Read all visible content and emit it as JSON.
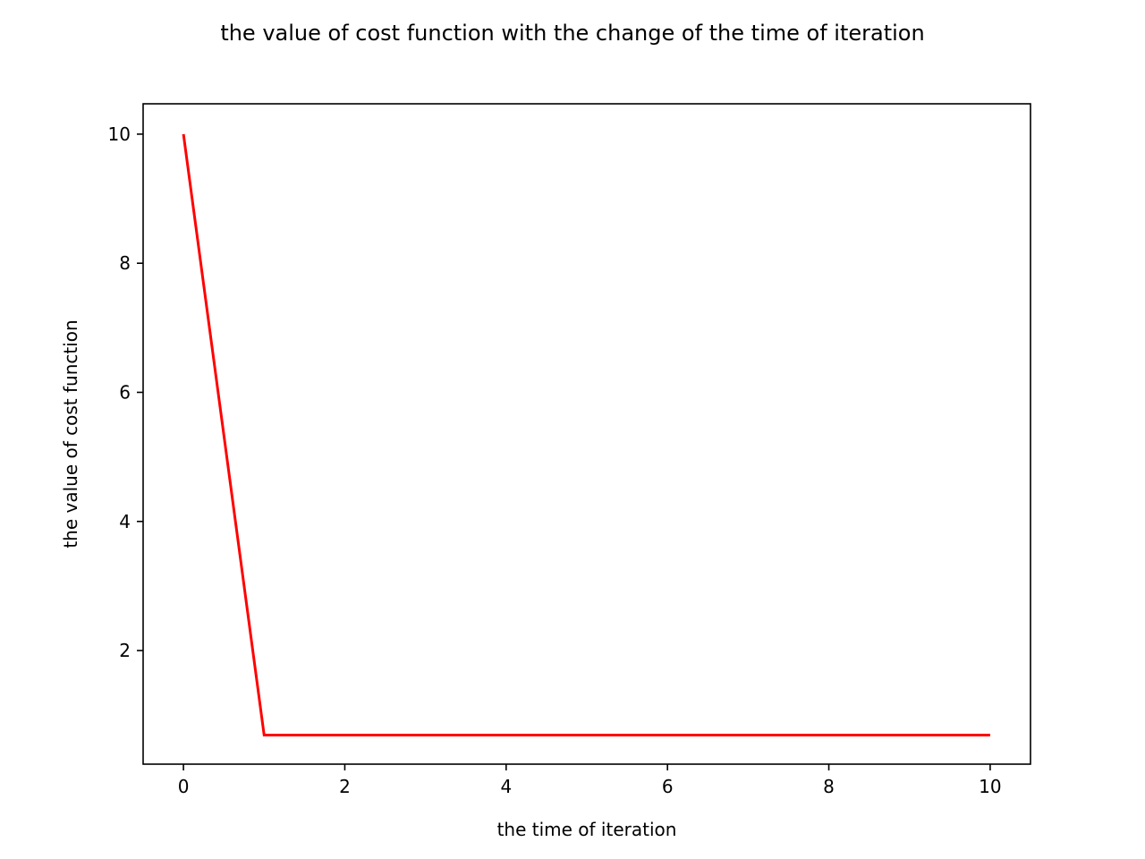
{
  "chart_data": {
    "type": "line",
    "title": "the value of cost function with the change of the time of iteration",
    "xlabel": "the time of iteration",
    "ylabel": "the value of cost function",
    "xlim": [
      -0.5,
      10.5
    ],
    "ylim": [
      0.24,
      10.47
    ],
    "xticks": [
      0,
      2,
      4,
      6,
      8,
      10
    ],
    "yticks": [
      2,
      4,
      6,
      8,
      10
    ],
    "grid": false,
    "series": [
      {
        "color": "#ff0000",
        "x": [
          0,
          1,
          2,
          3,
          4,
          5,
          6,
          7,
          8,
          9,
          10
        ],
        "y": [
          10,
          0.69,
          0.69,
          0.69,
          0.69,
          0.69,
          0.69,
          0.69,
          0.69,
          0.69,
          0.69
        ]
      }
    ]
  }
}
